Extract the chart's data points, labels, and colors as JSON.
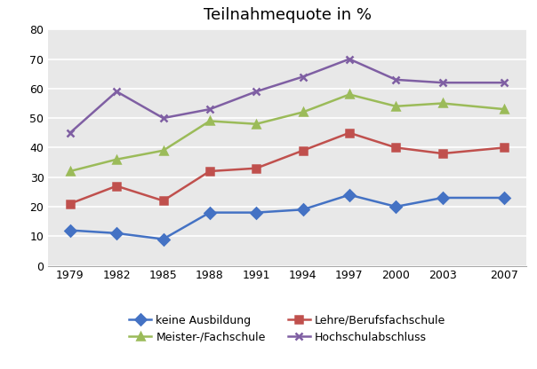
{
  "title": "Teilnahmequote in %",
  "years": [
    1979,
    1982,
    1985,
    1988,
    1991,
    1994,
    1997,
    2000,
    2003,
    2007
  ],
  "series": [
    {
      "label": "keine Ausbildung",
      "color": "#4472C4",
      "marker": "D",
      "values": [
        12,
        11,
        9,
        18,
        18,
        19,
        24,
        20,
        23,
        23
      ]
    },
    {
      "label": "Lehre/Berufsfachschule",
      "color": "#C0504D",
      "marker": "s",
      "values": [
        21,
        27,
        22,
        32,
        33,
        39,
        45,
        40,
        38,
        40
      ]
    },
    {
      "label": "Meister-/Fachschule",
      "color": "#9BBB59",
      "marker": "^",
      "values": [
        32,
        36,
        39,
        49,
        48,
        52,
        58,
        54,
        55,
        53
      ]
    },
    {
      "label": "Hochschulabschluss",
      "color": "#7F5FA3",
      "marker": "x",
      "values": [
        45,
        59,
        50,
        53,
        59,
        64,
        70,
        63,
        62,
        62
      ]
    }
  ],
  "ylim": [
    0,
    80
  ],
  "yticks": [
    0,
    10,
    20,
    30,
    40,
    50,
    60,
    70,
    80
  ],
  "fig_bg_color": "#FFFFFF",
  "plot_bg_color": "#E8E8E8",
  "grid_color": "#FFFFFF",
  "title_fontsize": 13,
  "legend_fontsize": 9,
  "tick_fontsize": 9,
  "linewidth": 1.8,
  "markersize": 6
}
